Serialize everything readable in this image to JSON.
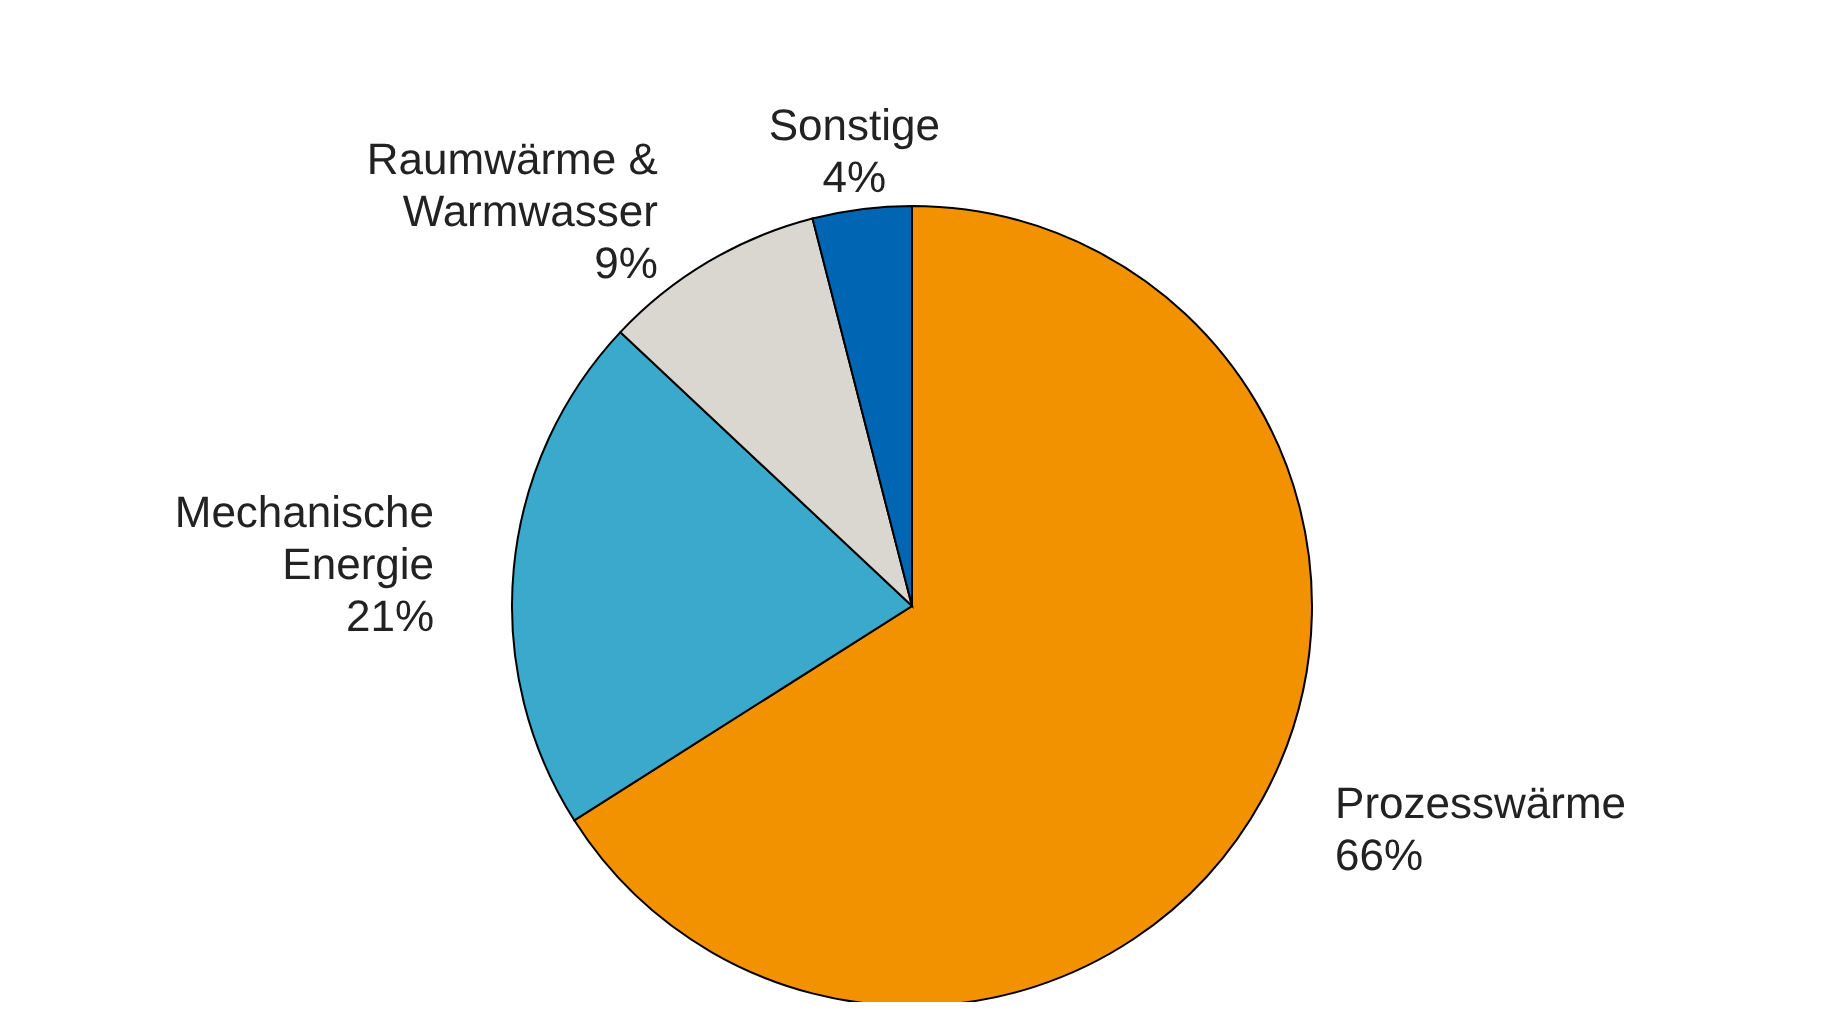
{
  "chart_data": {
    "type": "pie",
    "categories": [
      "Prozesswärme",
      "Mechanische Energie",
      "Raumwärme & Warmwasser",
      "Sonstige"
    ],
    "values": [
      66,
      21,
      9,
      4
    ],
    "colors": [
      "#f39200",
      "#3aa9cc",
      "#d9d7d0",
      "#0066b3"
    ],
    "value_labels": [
      "66%",
      "21%",
      "9%",
      "4%"
    ],
    "legend": false
  }
}
